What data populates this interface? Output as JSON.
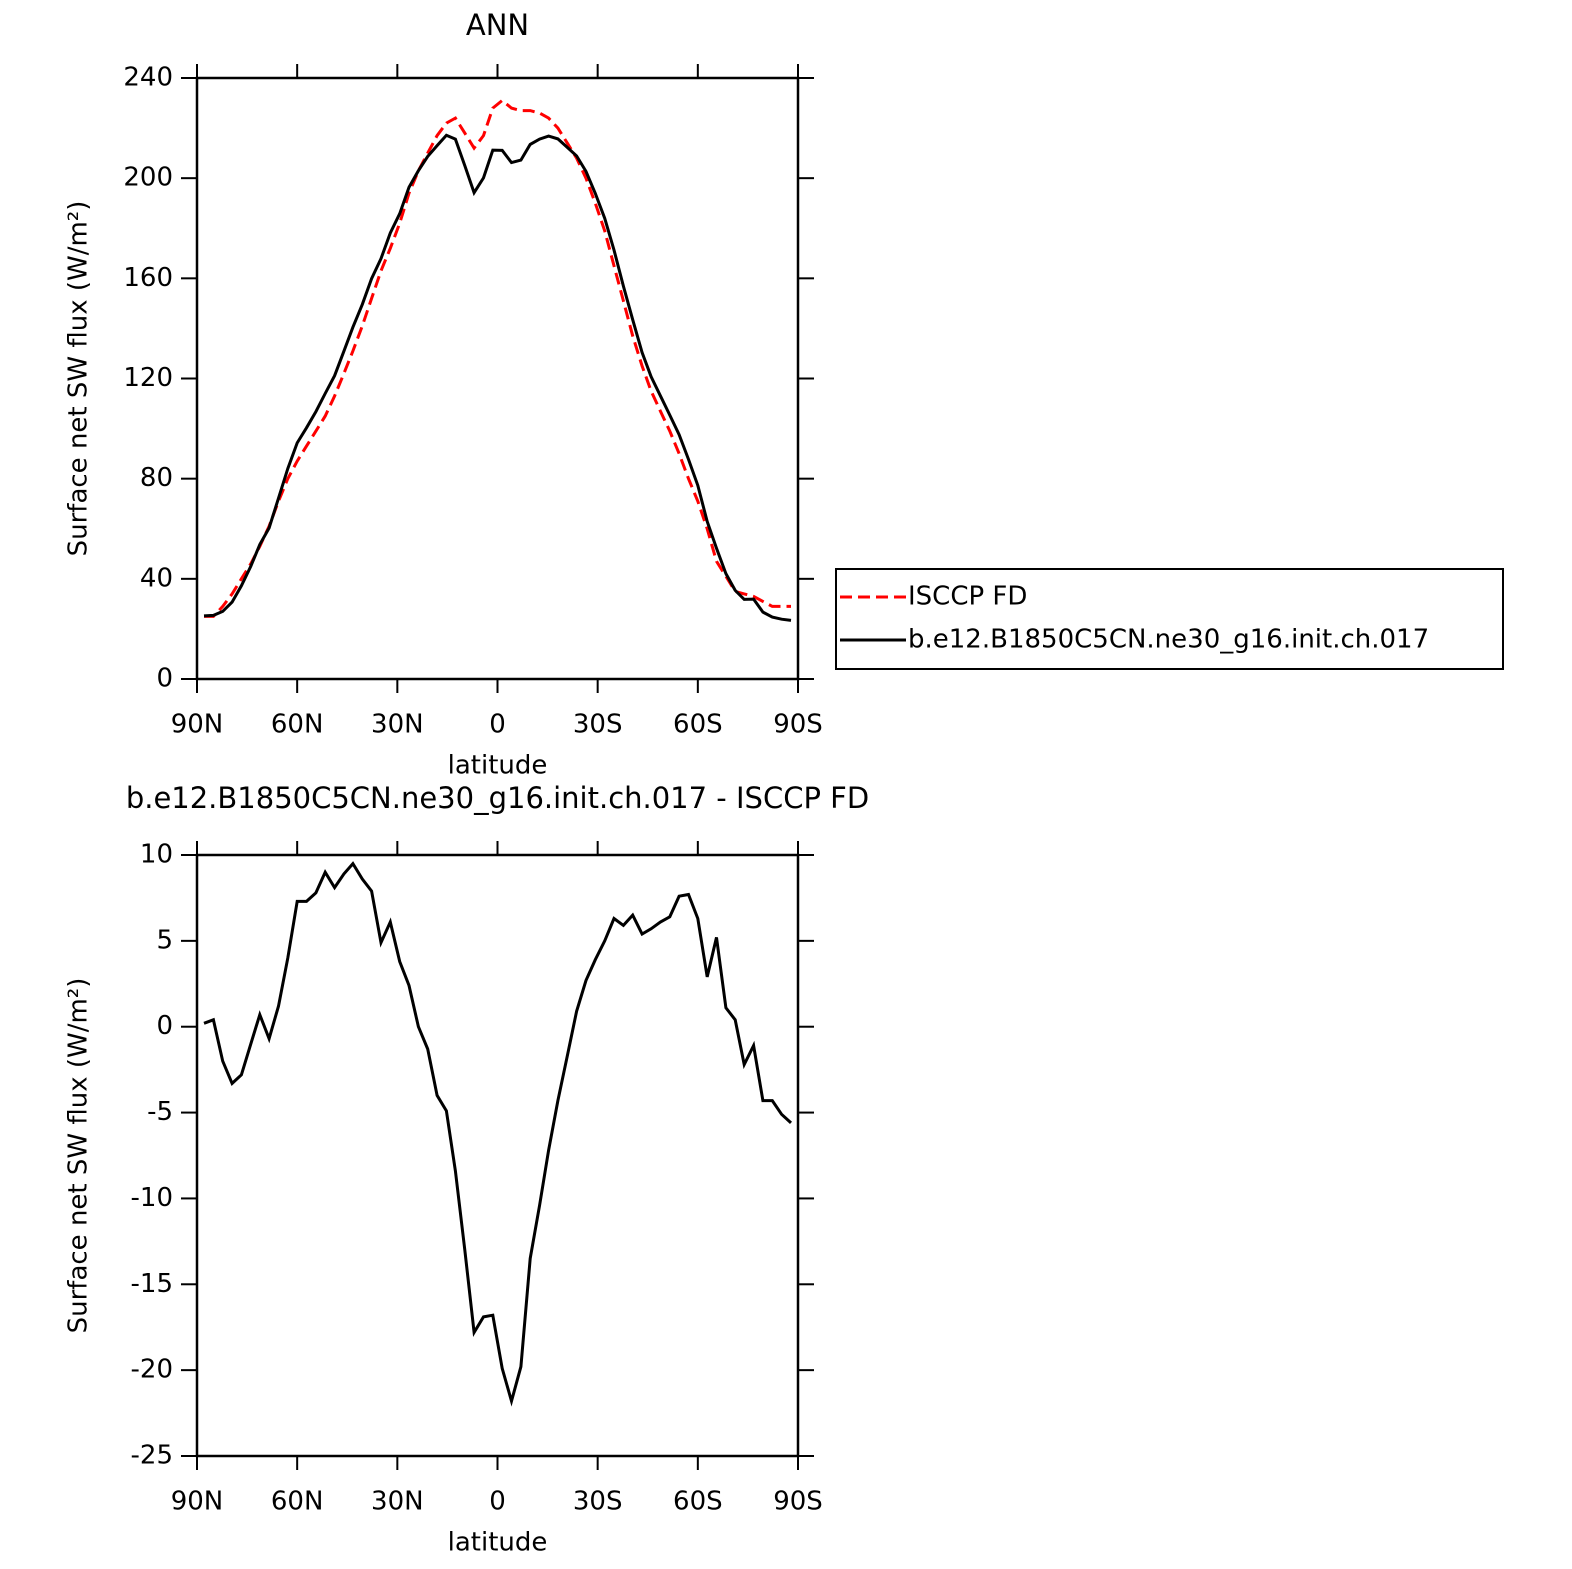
{
  "chart_data": [
    {
      "type": "line",
      "title": "ANN",
      "xlabel": "latitude",
      "ylabel": "Surface net SW flux (W/m²)",
      "x": [
        87.9,
        85.1,
        82.3,
        79.5,
        76.7,
        73.9,
        71.2,
        68.4,
        65.6,
        62.8,
        60.0,
        57.2,
        54.4,
        51.6,
        48.8,
        46.0,
        43.3,
        40.5,
        37.7,
        34.9,
        32.1,
        29.3,
        26.5,
        23.7,
        20.9,
        18.1,
        15.3,
        12.6,
        9.8,
        7.0,
        4.2,
        1.4,
        -1.4,
        -4.2,
        -7.0,
        -9.8,
        -12.6,
        -15.3,
        -18.1,
        -20.9,
        -23.7,
        -26.5,
        -29.3,
        -32.1,
        -34.9,
        -37.7,
        -40.5,
        -43.3,
        -46.0,
        -48.8,
        -51.6,
        -54.4,
        -57.2,
        -60.0,
        -62.8,
        -65.6,
        -68.4,
        -71.2,
        -73.9,
        -76.7,
        -79.5,
        -82.3,
        -85.1,
        -87.9
      ],
      "series": [
        {
          "name": "ISCCP FD",
          "color": "#ff0000",
          "line_style": "dashed",
          "values": [
            25,
            25,
            29,
            34,
            40,
            46,
            53,
            61,
            71,
            80,
            87,
            93,
            99,
            105,
            113,
            122,
            131,
            141,
            152,
            163,
            172,
            182,
            194,
            203,
            210,
            217,
            222,
            224,
            218,
            212,
            217,
            228,
            231,
            228,
            227,
            227,
            226,
            224,
            220,
            214,
            208,
            200,
            190,
            179,
            165,
            151,
            137,
            125,
            115,
            107,
            99,
            90,
            80,
            71,
            60,
            47,
            41,
            35,
            34,
            33,
            31,
            29,
            29,
            29
          ]
        },
        {
          "name": "b.e12.B1850C5CN.ne30_g16.init.ch.017",
          "color": "#000000",
          "line_style": "solid",
          "values": [
            25.2,
            25.4,
            27,
            30.7,
            37.2,
            45,
            53.7,
            60.3,
            72.2,
            84,
            94.3,
            100.3,
            106.8,
            114,
            121.1,
            130.9,
            140.5,
            149.6,
            159.9,
            167.9,
            178.1,
            185.8,
            196.4,
            203,
            208.7,
            213,
            217.1,
            215.6,
            205,
            194.2,
            200.1,
            211.2,
            211.1,
            206.2,
            207.2,
            213.5,
            215.6,
            216.8,
            215.7,
            212.3,
            208.9,
            202.7,
            193.9,
            184,
            171.3,
            156.9,
            143.5,
            130.4,
            120.7,
            113.1,
            105.4,
            97.6,
            87.7,
            77.3,
            62.9,
            52.2,
            42.1,
            35.4,
            31.8,
            31.9,
            26.7,
            24.7,
            23.9,
            23.4
          ]
        }
      ],
      "xlim": [
        90,
        -90
      ],
      "xticks": [
        {
          "value": 90,
          "label": "90N"
        },
        {
          "value": 60,
          "label": "60N"
        },
        {
          "value": 30,
          "label": "30N"
        },
        0,
        {
          "value": -30,
          "label": "30S"
        },
        {
          "value": -60,
          "label": "60S"
        },
        {
          "value": -90,
          "label": "90S"
        }
      ],
      "ylim": [
        0,
        240
      ],
      "yticks": [
        0,
        40,
        80,
        120,
        160,
        200,
        240
      ],
      "grid": false,
      "legend": "outside right"
    },
    {
      "type": "line",
      "title": "b.e12.B1850C5CN.ne30_g16.init.ch.017 - ISCCP FD",
      "xlabel": "latitude",
      "ylabel": "Surface net SW flux (W/m²)",
      "x": [
        87.9,
        85.1,
        82.3,
        79.5,
        76.7,
        73.9,
        71.2,
        68.4,
        65.6,
        62.8,
        60.0,
        57.2,
        54.4,
        51.6,
        48.8,
        46.0,
        43.3,
        40.5,
        37.7,
        34.9,
        32.1,
        29.3,
        26.5,
        23.7,
        20.9,
        18.1,
        15.3,
        12.6,
        9.8,
        7.0,
        4.2,
        1.4,
        -1.4,
        -4.2,
        -7.0,
        -9.8,
        -12.6,
        -15.3,
        -18.1,
        -20.9,
        -23.7,
        -26.5,
        -29.3,
        -32.1,
        -34.9,
        -37.7,
        -40.5,
        -43.3,
        -46.0,
        -48.8,
        -51.6,
        -54.4,
        -57.2,
        -60.0,
        -62.8,
        -65.6,
        -68.4,
        -71.2,
        -73.9,
        -76.7,
        -79.5,
        -82.3,
        -85.1,
        -87.9
      ],
      "color": "#000000",
      "values": [
        0.2,
        0.4,
        -2,
        -3.3,
        -2.8,
        -1.0,
        0.7,
        -0.7,
        1.2,
        4,
        7.3,
        7.3,
        7.8,
        9,
        8.1,
        8.9,
        9.5,
        8.6,
        7.9,
        4.9,
        6.1,
        3.8,
        2.4,
        0,
        -1.3,
        -4,
        -4.9,
        -8.4,
        -13,
        -17.8,
        -16.9,
        -16.8,
        -19.9,
        -21.8,
        -19.8,
        -13.5,
        -10.4,
        -7.2,
        -4.3,
        -1.7,
        0.9,
        2.7,
        3.9,
        5,
        6.3,
        5.9,
        6.5,
        5.4,
        5.7,
        6.1,
        6.4,
        7.6,
        7.7,
        6.3,
        2.9,
        5.2,
        1.1,
        0.4,
        -2.2,
        -1.1,
        -4.3,
        -4.3,
        -5.1,
        -5.6
      ],
      "xlim": [
        90,
        -90
      ],
      "xticks": [
        {
          "value": 90,
          "label": "90N"
        },
        {
          "value": 60,
          "label": "60N"
        },
        {
          "value": 30,
          "label": "30N"
        },
        0,
        {
          "value": -30,
          "label": "30S"
        },
        {
          "value": -60,
          "label": "60S"
        },
        {
          "value": -90,
          "label": "90S"
        }
      ],
      "ylim": [
        -25,
        10
      ],
      "yticks": [
        -25,
        -20,
        -15,
        -10,
        -5,
        0,
        5,
        10
      ],
      "grid": false
    }
  ]
}
